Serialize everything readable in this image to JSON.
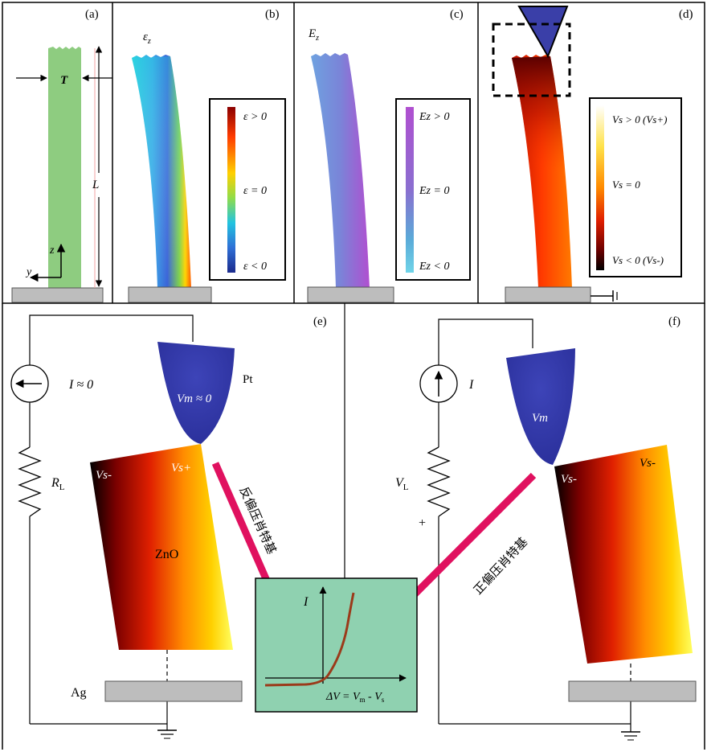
{
  "panels": {
    "a": {
      "tag": "(a)",
      "thickness_label": "T",
      "length_label": "L",
      "z_axis": "z",
      "y_axis": "y",
      "colors": {
        "rod": "#8ecc80",
        "base": "#bdbdbd"
      }
    },
    "b": {
      "tag": "(b)",
      "field": "ε",
      "field_sub": "z",
      "legend": [
        "ε > 0",
        "ε = 0",
        "ε < 0"
      ],
      "colormap": [
        "#8b0000",
        "#ff3b00",
        "#ffd000",
        "#8fdc4a",
        "#22c3e0",
        "#2f6fd6",
        "#1b2a8c"
      ]
    },
    "c": {
      "tag": "(c)",
      "field": "E",
      "field_sub": "z",
      "legend": [
        "Ez > 0",
        "Ez = 0",
        "Ez < 0"
      ],
      "colormap": [
        "#b04fd0",
        "#8a6fd0",
        "#5aaad8",
        "#6fd4e8"
      ]
    },
    "d": {
      "tag": "(d)",
      "legend": [
        "Vs > 0 (Vs+)",
        "Vs = 0",
        "Vs < 0 (Vs-)"
      ],
      "colormap": [
        "#ffffff",
        "#ffe24a",
        "#ff8a00",
        "#e01e00",
        "#6a0000",
        "#000000"
      ],
      "tip_color": "#3a3fa8"
    },
    "e": {
      "tag": "(e)",
      "source_label": "I ≈ 0",
      "resistor_label": "RL",
      "tip_label": "Vm ≈ 0",
      "tip_material": "Pt",
      "crystal_label": "ZnO",
      "left_face": "Vs-",
      "right_face": "Vs+",
      "electrode_label": "Ag",
      "arrow_label": "反偏压肖特基"
    },
    "f": {
      "tag": "(f)",
      "source_label": "I",
      "load_label": "VL",
      "plus_sign": "+",
      "tip_label": "Vm",
      "left_face": "Vs-",
      "right_face": "Vs-",
      "arrow_label": "正偏压肖特基"
    },
    "iv_inset": {
      "y_axis": "I",
      "x_axis": "ΔV = Vm - Vs",
      "colors": {
        "background": "#8fd1b0",
        "curve": "#9b3a1a",
        "arrow": "#e0115f"
      }
    }
  }
}
